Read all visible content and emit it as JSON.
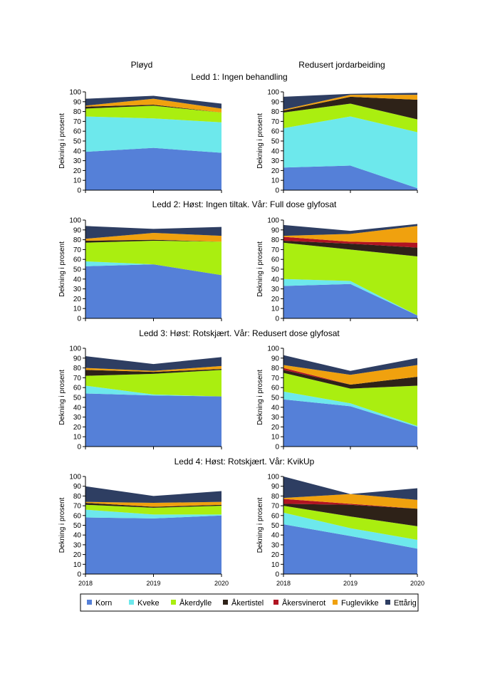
{
  "header": {
    "left": "Pløyd",
    "right": "Redusert jordarbeiding"
  },
  "colors": {
    "korn": "#5580d8",
    "kveke": "#6de8ec",
    "akerdylle": "#aaee10",
    "akertistel": "#2e2218",
    "akersvinerot": "#b01422",
    "fuglevikke": "#f0a10e",
    "ettarig": "#2e3e62"
  },
  "legend": [
    {
      "key": "korn",
      "label": "Korn"
    },
    {
      "key": "kveke",
      "label": "Kveke"
    },
    {
      "key": "akerdylle",
      "label": "Åkerdylle"
    },
    {
      "key": "akertistel",
      "label": "Åkertistel"
    },
    {
      "key": "akersvinerot",
      "label": "Åkersvinerot"
    },
    {
      "key": "fuglevikke",
      "label": "Fuglevikke"
    },
    {
      "key": "ettarig",
      "label": "Ettårig"
    }
  ],
  "chart_data": {
    "type": "area",
    "stacked": true,
    "ylabel": "Dekning i prosent",
    "ylim": [
      0,
      100
    ],
    "yticks": [
      0,
      10,
      20,
      30,
      40,
      50,
      60,
      70,
      80,
      90,
      100
    ],
    "x": [
      "2018",
      "2019",
      "2020"
    ],
    "series_order": [
      "korn",
      "kveke",
      "akerdylle",
      "akertistel",
      "akersvinerot",
      "fuglevikke",
      "ettarig"
    ],
    "panels": [
      {
        "title": "Ledd 1: Ingen behandling",
        "ployd": {
          "korn": [
            39,
            43,
            38
          ],
          "kveke": [
            36,
            30,
            31
          ],
          "akerdylle": [
            8,
            13,
            10
          ],
          "akertistel": [
            2,
            1,
            0
          ],
          "akersvinerot": [
            0,
            0,
            0
          ],
          "fuglevikke": [
            1,
            6,
            4
          ],
          "ettarig": [
            7,
            3,
            5
          ]
        },
        "redusert": {
          "korn": [
            23,
            25,
            2
          ],
          "kveke": [
            40,
            50,
            57
          ],
          "akerdylle": [
            16,
            13,
            13
          ],
          "akertistel": [
            2,
            7,
            20
          ],
          "akersvinerot": [
            0,
            0,
            0
          ],
          "fuglevikke": [
            1,
            2,
            5
          ],
          "ettarig": [
            13,
            1,
            2
          ]
        }
      },
      {
        "title": "Ledd 2: Høst: Ingen tiltak. Vår: Full dose glyfosat",
        "ployd": {
          "korn": [
            53,
            55,
            44
          ],
          "kveke": [
            5,
            0,
            0
          ],
          "akerdylle": [
            19,
            24,
            34
          ],
          "akertistel": [
            2,
            1,
            0
          ],
          "akersvinerot": [
            0,
            0,
            0
          ],
          "fuglevikke": [
            2,
            7,
            6
          ],
          "ettarig": [
            13,
            4,
            9
          ]
        },
        "redusert": {
          "korn": [
            33,
            35,
            3
          ],
          "kveke": [
            7,
            3,
            0
          ],
          "akerdylle": [
            37,
            32,
            60
          ],
          "akertistel": [
            2,
            6,
            9
          ],
          "akersvinerot": [
            4,
            2,
            5
          ],
          "fuglevikke": [
            1,
            8,
            17
          ],
          "ettarig": [
            11,
            3,
            2
          ]
        }
      },
      {
        "title": "Ledd 3: Høst: Rotskjært. Vår: Redusert dose glyfosat",
        "ployd": {
          "korn": [
            54,
            52,
            51
          ],
          "kveke": [
            8,
            1,
            0
          ],
          "akerdylle": [
            10,
            21,
            27
          ],
          "akertistel": [
            6,
            2,
            1
          ],
          "akersvinerot": [
            0,
            0,
            0
          ],
          "fuglevikke": [
            2,
            1,
            3
          ],
          "ettarig": [
            12,
            7,
            9
          ]
        },
        "redusert": {
          "korn": [
            48,
            41,
            20
          ],
          "kveke": [
            8,
            3,
            1
          ],
          "akerdylle": [
            19,
            15,
            41
          ],
          "akertistel": [
            3,
            4,
            9
          ],
          "akersvinerot": [
            2,
            0,
            0
          ],
          "fuglevikke": [
            3,
            10,
            12
          ],
          "ettarig": [
            10,
            4,
            7
          ]
        }
      },
      {
        "title": "Ledd 4: Høst: Rotskjært. Vår: KvikUp",
        "ployd": {
          "korn": [
            58,
            57,
            60
          ],
          "kveke": [
            8,
            4,
            1
          ],
          "akerdylle": [
            5,
            7,
            9
          ],
          "akertistel": [
            2,
            1,
            1
          ],
          "akersvinerot": [
            0,
            0,
            0
          ],
          "fuglevikke": [
            1,
            4,
            3
          ],
          "ettarig": [
            16,
            7,
            11
          ]
        },
        "redusert": {
          "korn": [
            51,
            39,
            26
          ],
          "kveke": [
            12,
            8,
            9
          ],
          "akerdylle": [
            7,
            12,
            14
          ],
          "akertistel": [
            2,
            12,
            18
          ],
          "akersvinerot": [
            5,
            1,
            0
          ],
          "fuglevikke": [
            1,
            10,
            9
          ],
          "ettarig": [
            22,
            0,
            12
          ]
        }
      }
    ]
  }
}
